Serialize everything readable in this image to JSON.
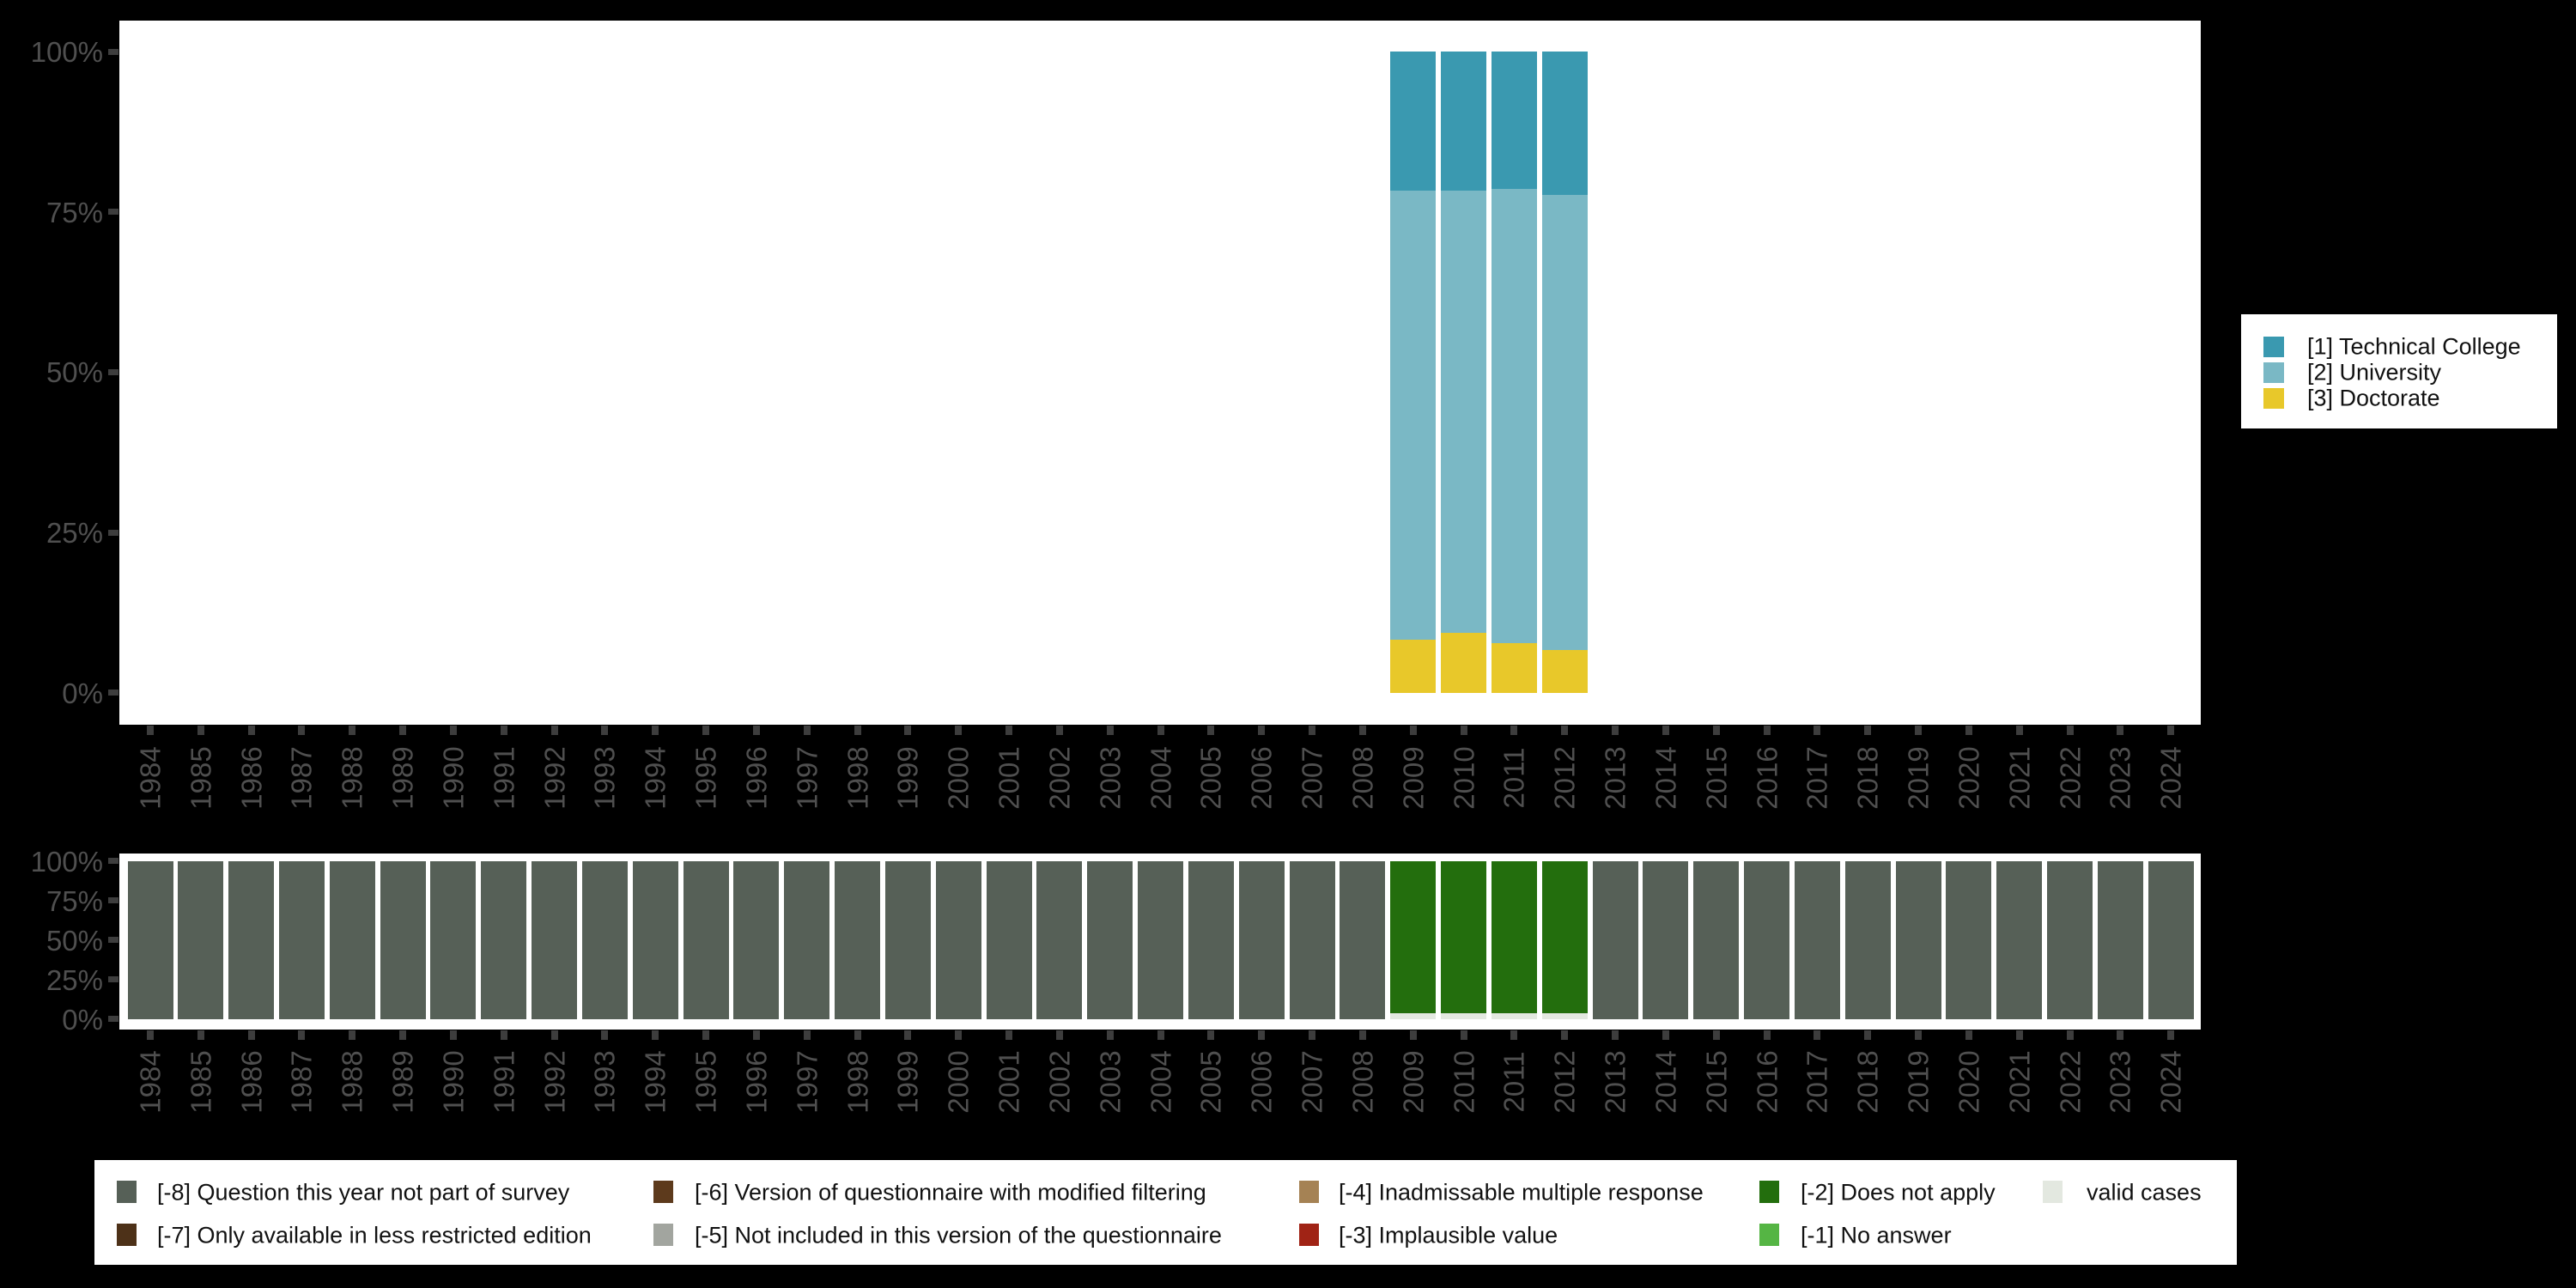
{
  "colors": {
    "background": "#000000",
    "panel": "#ffffff",
    "axis_label": "#4f4f4f",
    "axis_tick": "#3d3d3d",
    "legend_text": "#111111"
  },
  "years": [
    "1984",
    "1985",
    "1986",
    "1987",
    "1988",
    "1989",
    "1990",
    "1991",
    "1992",
    "1993",
    "1994",
    "1995",
    "1996",
    "1997",
    "1998",
    "1999",
    "2000",
    "2001",
    "2002",
    "2003",
    "2004",
    "2005",
    "2006",
    "2007",
    "2008",
    "2009",
    "2010",
    "2011",
    "2012",
    "2013",
    "2014",
    "2015",
    "2016",
    "2017",
    "2018",
    "2019",
    "2020",
    "2021",
    "2022",
    "2023",
    "2024"
  ],
  "y_axis_ticks": [
    "100%",
    "75%",
    "50%",
    "25%",
    "0%"
  ],
  "y_axis_ticks_pct": [
    100,
    75,
    50,
    25,
    0
  ],
  "top_legend": {
    "items": [
      {
        "label": "[1] Technical College",
        "color": "#3a99b0"
      },
      {
        "label": "[2] University",
        "color": "#7ab8c5"
      },
      {
        "label": "[3] Doctorate",
        "color": "#e8c82a"
      }
    ]
  },
  "bottom_legend": {
    "items": [
      {
        "col": 0,
        "row": 0,
        "label": "[-8] Question this year not part of survey",
        "color": "#566057"
      },
      {
        "col": 0,
        "row": 1,
        "label": "[-7] Only available in less restricted edition",
        "color": "#4d3118"
      },
      {
        "col": 1,
        "row": 0,
        "label": "[-6] Version of questionnaire with modified filtering",
        "color": "#5d3a1c"
      },
      {
        "col": 1,
        "row": 1,
        "label": "[-5] Not included in this version of the questionnaire",
        "color": "#a2a59f"
      },
      {
        "col": 2,
        "row": 0,
        "label": "[-4] Inadmissable multiple response",
        "color": "#a58254"
      },
      {
        "col": 2,
        "row": 1,
        "label": "[-3] Implausible value",
        "color": "#a02315"
      },
      {
        "col": 3,
        "row": 0,
        "label": "[-2] Does not apply",
        "color": "#236e0d"
      },
      {
        "col": 3,
        "row": 1,
        "label": "[-1] No answer",
        "color": "#55b544"
      },
      {
        "col": 4,
        "row": 0,
        "label": "valid cases",
        "color": "#e3e8e0"
      }
    ]
  },
  "chart_data": [
    {
      "type": "bar",
      "name": "value-distribution",
      "stacked": true,
      "stack_order": "bottom-to-top",
      "x": "years",
      "ylim": [
        0,
        100
      ],
      "ylabel": "",
      "grid": false,
      "legend_position": "right",
      "palette": {
        "[3] Doctorate": "#e8c82a",
        "[2] University": "#7ab8c5",
        "[1] Technical College": "#3a99b0"
      },
      "bars": {
        "2009": [
          {
            "series": "[3] Doctorate",
            "pct": 8.2
          },
          {
            "series": "[2] University",
            "pct": 70.1
          },
          {
            "series": "[1] Technical College",
            "pct": 21.7
          }
        ],
        "2010": [
          {
            "series": "[3] Doctorate",
            "pct": 9.4
          },
          {
            "series": "[2] University",
            "pct": 68.9
          },
          {
            "series": "[1] Technical College",
            "pct": 21.7
          }
        ],
        "2011": [
          {
            "series": "[3] Doctorate",
            "pct": 7.7
          },
          {
            "series": "[2] University",
            "pct": 70.9
          },
          {
            "series": "[1] Technical College",
            "pct": 21.4
          }
        ],
        "2012": [
          {
            "series": "[3] Doctorate",
            "pct": 6.7
          },
          {
            "series": "[2] University",
            "pct": 71.0
          },
          {
            "series": "[1] Technical College",
            "pct": 22.3
          }
        ]
      }
    },
    {
      "type": "bar",
      "name": "missing-values",
      "stacked": true,
      "stack_order": "bottom-to-top",
      "x": "years",
      "ylim": [
        0,
        100
      ],
      "grid": false,
      "palette": {
        "valid cases": "#e3e8e0",
        "[-2] Does not apply": "#236e0d",
        "[-8] Question this year not part of survey": "#566057"
      },
      "default_stack": [
        {
          "series": "[-8] Question this year not part of survey",
          "pct": 100
        }
      ],
      "bars": {
        "2009": [
          {
            "series": "valid cases",
            "pct": 3.6
          },
          {
            "series": "[-2] Does not apply",
            "pct": 96.4
          }
        ],
        "2010": [
          {
            "series": "valid cases",
            "pct": 3.6
          },
          {
            "series": "[-2] Does not apply",
            "pct": 96.4
          }
        ],
        "2011": [
          {
            "series": "valid cases",
            "pct": 3.6
          },
          {
            "series": "[-2] Does not apply",
            "pct": 96.4
          }
        ],
        "2012": [
          {
            "series": "valid cases",
            "pct": 3.6
          },
          {
            "series": "[-2] Does not apply",
            "pct": 96.4
          }
        ]
      }
    }
  ]
}
